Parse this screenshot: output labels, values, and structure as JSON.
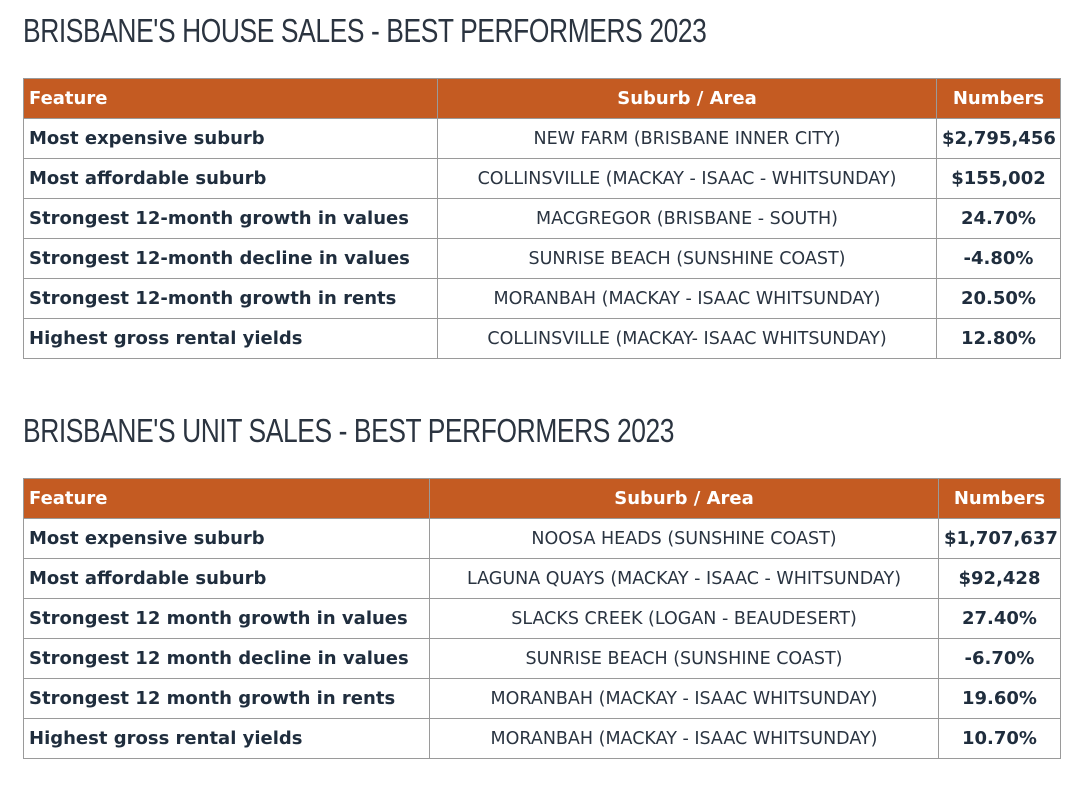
{
  "tables": [
    {
      "title": "BRISBANE'S HOUSE SALES - BEST PERFORMERS 2023",
      "headers": {
        "feature": "Feature",
        "suburb": "Suburb / Area",
        "numbers": "Numbers"
      },
      "rows": [
        {
          "feature": "Most expensive suburb",
          "suburb": "NEW FARM (BRISBANE INNER CITY)",
          "number": "$2,795,456"
        },
        {
          "feature": "Most affordable suburb",
          "suburb": "COLLINSVILLE (MACKAY - ISAAC - WHITSUNDAY)",
          "number": "$155,002"
        },
        {
          "feature": "Strongest 12-month growth in values",
          "suburb": "MACGREGOR (BRISBANE - SOUTH)",
          "number": "24.70%"
        },
        {
          "feature": "Strongest 12-month decline in values",
          "suburb": "SUNRISE BEACH (SUNSHINE COAST)",
          "number": "-4.80%"
        },
        {
          "feature": "Strongest 12-month growth in rents",
          "suburb": "MORANBAH (MACKAY - ISAAC WHITSUNDAY)",
          "number": "20.50%"
        },
        {
          "feature": "Highest gross rental yields",
          "suburb": "COLLINSVILLE (MACKAY- ISAAC WHITSUNDAY)",
          "number": "12.80%"
        }
      ]
    },
    {
      "title": "BRISBANE'S UNIT SALES - BEST PERFORMERS 2023",
      "headers": {
        "feature": "Feature",
        "suburb": "Suburb / Area",
        "numbers": "Numbers"
      },
      "rows": [
        {
          "feature": "Most expensive suburb",
          "suburb": "NOOSA HEADS (SUNSHINE COAST)",
          "number": "$1,707,637"
        },
        {
          "feature": "Most affordable suburb",
          "suburb": "LAGUNA QUAYS (MACKAY - ISAAC - WHITSUNDAY)",
          "number": "$92,428"
        },
        {
          "feature": "Strongest 12 month growth in values",
          "suburb": "SLACKS CREEK (LOGAN - BEAUDESERT)",
          "number": "27.40%"
        },
        {
          "feature": "Strongest 12 month decline in values",
          "suburb": "SUNRISE BEACH (SUNSHINE COAST)",
          "number": "-6.70%"
        },
        {
          "feature": "Strongest 12 month growth in rents",
          "suburb": "MORANBAH (MACKAY - ISAAC WHITSUNDAY)",
          "number": "19.60%"
        },
        {
          "feature": "Highest gross rental yields",
          "suburb": "MORANBAH (MACKAY - ISAAC WHITSUNDAY)",
          "number": "10.70%"
        }
      ]
    }
  ],
  "colors": {
    "header_bg": "#c45b22",
    "header_text": "#ffffff",
    "title_text": "#2b3440",
    "body_text": "#1f2d3d",
    "border": "#9a9a9a"
  }
}
